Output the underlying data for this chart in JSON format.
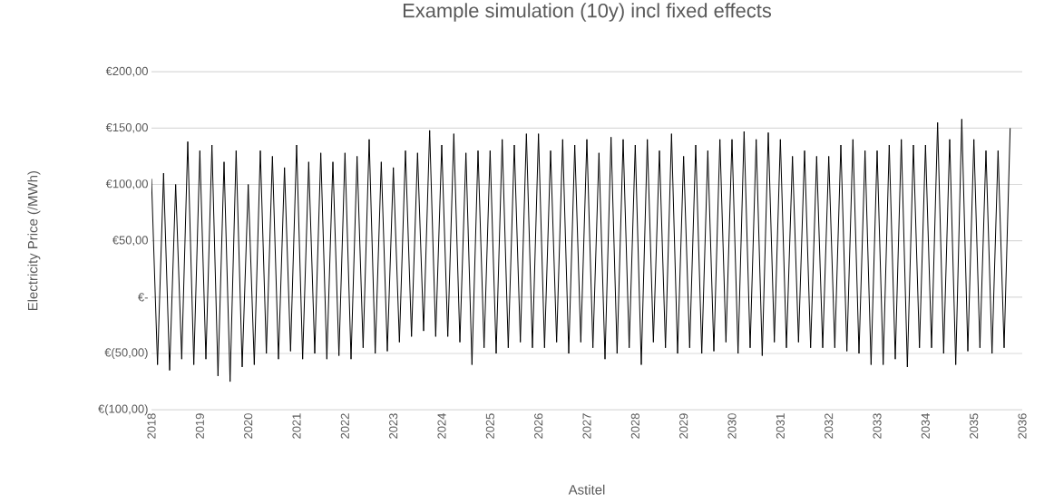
{
  "chart_data": {
    "type": "line",
    "title": "Example simulation (10y) incl fixed effects",
    "xlabel": "Astitel",
    "ylabel": "Electricity Price (/MWh)",
    "x": [
      2018.0,
      2018.125,
      2018.25,
      2018.375,
      2018.5,
      2018.625,
      2018.75,
      2018.875,
      2019.0,
      2019.125,
      2019.25,
      2019.375,
      2019.5,
      2019.625,
      2019.75,
      2019.875,
      2020.0,
      2020.125,
      2020.25,
      2020.375,
      2020.5,
      2020.625,
      2020.75,
      2020.875,
      2021.0,
      2021.125,
      2021.25,
      2021.375,
      2021.5,
      2021.625,
      2021.75,
      2021.875,
      2022.0,
      2022.125,
      2022.25,
      2022.375,
      2022.5,
      2022.625,
      2022.75,
      2022.875,
      2023.0,
      2023.125,
      2023.25,
      2023.375,
      2023.5,
      2023.625,
      2023.75,
      2023.875,
      2024.0,
      2024.125,
      2024.25,
      2024.375,
      2024.5,
      2024.625,
      2024.75,
      2024.875,
      2025.0,
      2025.125,
      2025.25,
      2025.375,
      2025.5,
      2025.625,
      2025.75,
      2025.875,
      2026.0,
      2026.125,
      2026.25,
      2026.375,
      2026.5,
      2026.625,
      2026.75,
      2026.875,
      2027.0,
      2027.125,
      2027.25,
      2027.375,
      2027.5,
      2027.625,
      2027.75,
      2027.875,
      2028.0,
      2028.125,
      2028.25,
      2028.375,
      2028.5,
      2028.625,
      2028.75,
      2028.875,
      2029.0,
      2029.125,
      2029.25,
      2029.375,
      2029.5,
      2029.625,
      2029.75,
      2029.875,
      2030.0,
      2030.125,
      2030.25,
      2030.375,
      2030.5,
      2030.625,
      2030.75,
      2030.875,
      2031.0,
      2031.125,
      2031.25,
      2031.375,
      2031.5,
      2031.625,
      2031.75,
      2031.875,
      2032.0,
      2032.125,
      2032.25,
      2032.375,
      2032.5,
      2032.625,
      2032.75,
      2032.875,
      2033.0,
      2033.125,
      2033.25,
      2033.375,
      2033.5,
      2033.625,
      2033.75,
      2033.875,
      2034.0,
      2034.125,
      2034.25,
      2034.375,
      2034.5,
      2034.625,
      2034.75,
      2034.875,
      2035.0,
      2035.125,
      2035.25,
      2035.375,
      2035.5,
      2035.625,
      2035.75
    ],
    "series": [
      {
        "color": "#000000",
        "values": [
          105,
          -60,
          110,
          -65,
          100,
          -55,
          138,
          -60,
          130,
          -55,
          135,
          -70,
          120,
          -75,
          130,
          -62,
          100,
          -60,
          130,
          -50,
          125,
          -55,
          115,
          -48,
          135,
          -55,
          120,
          -50,
          128,
          -55,
          120,
          -52,
          128,
          -55,
          125,
          -45,
          140,
          -50,
          120,
          -48,
          115,
          -40,
          130,
          -35,
          128,
          -30,
          148,
          -35,
          135,
          -35,
          145,
          -40,
          128,
          -60,
          130,
          -45,
          130,
          -50,
          140,
          -45,
          135,
          -40,
          145,
          -45,
          145,
          -45,
          130,
          -40,
          140,
          -50,
          135,
          -40,
          140,
          -45,
          128,
          -55,
          142,
          -50,
          140,
          -45,
          135,
          -60,
          140,
          -40,
          130,
          -45,
          145,
          -50,
          125,
          -45,
          135,
          -50,
          130,
          -48,
          140,
          -40,
          140,
          -50,
          147,
          -45,
          140,
          -52,
          146,
          -40,
          140,
          -45,
          125,
          -40,
          130,
          -45,
          125,
          -45,
          125,
          -45,
          135,
          -48,
          140,
          -50,
          130,
          -60,
          130,
          -60,
          135,
          -55,
          140,
          -62,
          135,
          -45,
          135,
          -45,
          155,
          -50,
          140,
          -60,
          158,
          -48,
          140,
          -45,
          130,
          -50,
          130,
          -45,
          150
        ]
      }
    ],
    "xlim": [
      2018,
      2036
    ],
    "xticks": [
      2018,
      2019,
      2020,
      2021,
      2022,
      2023,
      2024,
      2025,
      2026,
      2027,
      2028,
      2029,
      2030,
      2031,
      2032,
      2033,
      2034,
      2035,
      2036
    ],
    "ylim": [
      -100,
      200
    ],
    "yticks": [
      {
        "value": -100,
        "label": "€(100,00)"
      },
      {
        "value": -50,
        "label": "€(50,00)"
      },
      {
        "value": 0,
        "label": "€-"
      },
      {
        "value": 50,
        "label": "€50,00"
      },
      {
        "value": 100,
        "label": "€100,00"
      },
      {
        "value": 150,
        "label": "€150,00"
      },
      {
        "value": 200,
        "label": "€200,00"
      }
    ],
    "grid": "y",
    "marker": "none",
    "line_style": "solid"
  }
}
